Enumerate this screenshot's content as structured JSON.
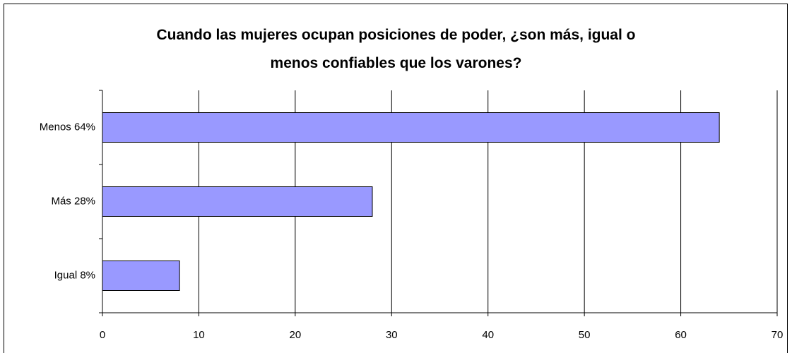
{
  "chart_data": {
    "type": "bar",
    "orientation": "horizontal",
    "title": "Cuando las mujeres ocupan posiciones de poder, ¿son más, igual o menos confiables que los varones?",
    "categories": [
      "Menos 64%",
      "Más 28%",
      "Igual 8%"
    ],
    "values": [
      64,
      28,
      8
    ],
    "color": "#9999ff",
    "xlim": [
      0,
      70
    ],
    "xticks": [
      0,
      10,
      20,
      30,
      40,
      50,
      60,
      70
    ],
    "grid": true
  }
}
